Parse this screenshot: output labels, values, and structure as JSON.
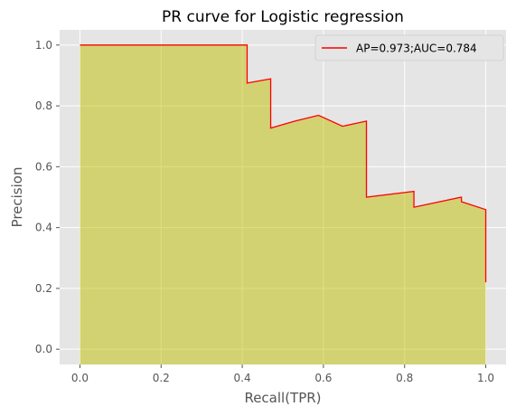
{
  "chart_data": {
    "type": "area",
    "title": "PR curve for Logistic regression",
    "xlabel": "Recall(TPR)",
    "ylabel": "Precision",
    "xlim": [
      -0.05,
      1.05
    ],
    "ylim": [
      -0.05,
      1.05
    ],
    "xticks": [
      0.0,
      0.2,
      0.4,
      0.6,
      0.8,
      1.0
    ],
    "yticks": [
      0.0,
      0.2,
      0.4,
      0.6,
      0.8,
      1.0
    ],
    "xtick_labels": [
      "0.0",
      "0.2",
      "0.4",
      "0.6",
      "0.8",
      "1.0"
    ],
    "ytick_labels": [
      "0.0",
      "0.2",
      "0.4",
      "0.6",
      "0.8",
      "1.0"
    ],
    "grid": true,
    "legend_position": "top-right",
    "legend": [
      "AP=0.973;AUC=0.784"
    ],
    "series": [
      {
        "name": "AP=0.973;AUC=0.784",
        "x": [
          0.0,
          0.0,
          0.412,
          0.412,
          0.47,
          0.47,
          0.53,
          0.588,
          0.647,
          0.706,
          0.706,
          0.823,
          0.823,
          0.94,
          0.94,
          1.0,
          1.0
        ],
        "y": [
          0.0,
          1.0,
          1.0,
          0.875,
          0.889,
          0.727,
          0.75,
          0.769,
          0.733,
          0.75,
          0.5,
          0.519,
          0.467,
          0.5,
          0.485,
          0.459,
          0.22
        ],
        "line_color": "#ff0000",
        "fill_color": "#bfbf00",
        "fill_opacity": 0.5
      }
    ]
  },
  "colors": {
    "plot_background": "#e5e5e5",
    "grid": "#ffffff",
    "line": "#ff0000",
    "fill": "#bfbf00"
  }
}
